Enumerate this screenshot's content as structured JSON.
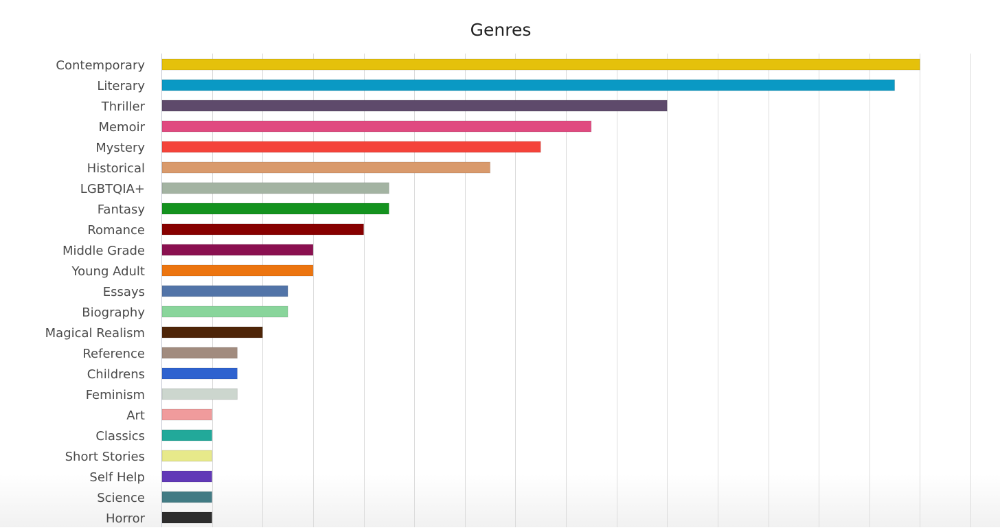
{
  "chart_data": {
    "type": "bar",
    "orientation": "horizontal",
    "title": "Genres",
    "xlabel": "",
    "ylabel": "",
    "xlim": [
      0,
      32
    ],
    "x_grid_step": 2,
    "grid": true,
    "x_tick_labels_visible": false,
    "categories": [
      "Contemporary",
      "Literary",
      "Thriller",
      "Memoir",
      "Mystery",
      "Historical",
      "LGBTQIA+",
      "Fantasy",
      "Romance",
      "Middle Grade",
      "Young Adult",
      "Essays",
      "Biography",
      "Magical Realism",
      "Reference",
      "Childrens",
      "Feminism",
      "Art",
      "Classics",
      "Short Stories",
      "Self Help",
      "Science",
      "Horror"
    ],
    "values": [
      30,
      29,
      20,
      17,
      15,
      13,
      9,
      9,
      8,
      6,
      6,
      5,
      5,
      4,
      3,
      3,
      3,
      2,
      2,
      2,
      2,
      2,
      2
    ],
    "colors": [
      "#e5c10b",
      "#0a99c4",
      "#5e4a6b",
      "#e04a80",
      "#f4433a",
      "#d99a6c",
      "#a3b3a2",
      "#14921f",
      "#870000",
      "#8a1050",
      "#ec7510",
      "#5274a8",
      "#89d59b",
      "#4e2508",
      "#a18b7e",
      "#2e62cf",
      "#ccd6ce",
      "#f09b9c",
      "#22a99a",
      "#e7e98a",
      "#6139b7",
      "#427b84",
      "#2d2d2d"
    ],
    "legend": "none"
  }
}
